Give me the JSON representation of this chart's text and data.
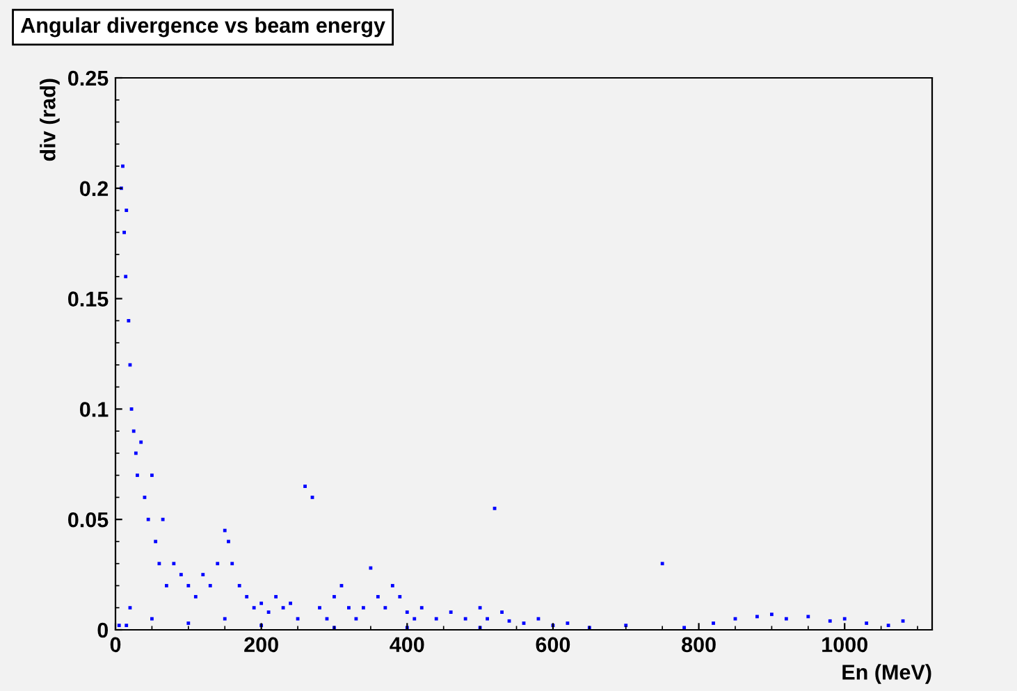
{
  "chart_data": {
    "type": "scatter",
    "title": "Angular divergence vs beam energy",
    "xlabel": "En (MeV)",
    "ylabel": "div (rad)",
    "xlim": [
      0,
      1120
    ],
    "ylim": [
      0,
      0.25
    ],
    "xticks": [
      0,
      200,
      400,
      600,
      800,
      1000
    ],
    "yticks": [
      0,
      0.05,
      0.1,
      0.15,
      0.2,
      0.25
    ],
    "marker": "square",
    "grid": false,
    "legend": false,
    "series": [
      {
        "color": "#0000ff",
        "x": [
          8,
          10,
          12,
          14,
          15,
          18,
          20,
          22,
          25,
          28,
          30,
          35,
          40,
          45,
          50,
          55,
          60,
          65,
          70,
          80,
          90,
          100,
          110,
          120,
          130,
          140,
          150,
          155,
          160,
          170,
          180,
          190,
          200,
          210,
          220,
          230,
          240,
          250,
          260,
          270,
          280,
          290,
          300,
          310,
          320,
          330,
          340,
          350,
          360,
          370,
          380,
          390,
          400,
          410,
          420,
          440,
          460,
          480,
          500,
          510,
          520,
          530,
          540,
          560,
          580,
          600,
          620,
          650,
          700,
          750,
          780,
          820,
          850,
          880,
          900,
          920,
          950,
          980,
          1000,
          1030,
          1060,
          1080,
          5,
          15,
          20,
          50,
          100,
          150,
          200,
          300,
          400,
          500
        ],
        "values": [
          0.2,
          0.21,
          0.18,
          0.16,
          0.19,
          0.14,
          0.12,
          0.1,
          0.09,
          0.08,
          0.07,
          0.085,
          0.06,
          0.05,
          0.07,
          0.04,
          0.03,
          0.05,
          0.02,
          0.03,
          0.025,
          0.02,
          0.015,
          0.025,
          0.02,
          0.03,
          0.045,
          0.04,
          0.03,
          0.02,
          0.015,
          0.01,
          0.012,
          0.008,
          0.015,
          0.01,
          0.012,
          0.005,
          0.065,
          0.06,
          0.01,
          0.005,
          0.015,
          0.02,
          0.01,
          0.005,
          0.01,
          0.028,
          0.015,
          0.01,
          0.02,
          0.015,
          0.008,
          0.005,
          0.01,
          0.005,
          0.008,
          0.005,
          0.01,
          0.005,
          0.055,
          0.008,
          0.004,
          0.003,
          0.005,
          0.002,
          0.003,
          0.001,
          0.002,
          0.03,
          0.001,
          0.003,
          0.005,
          0.006,
          0.007,
          0.005,
          0.006,
          0.004,
          0.005,
          0.003,
          0.002,
          0.004,
          0.002,
          0.002,
          0.01,
          0.005,
          0.003,
          0.005,
          0.002,
          0.001,
          0.001,
          0.001
        ]
      }
    ]
  }
}
